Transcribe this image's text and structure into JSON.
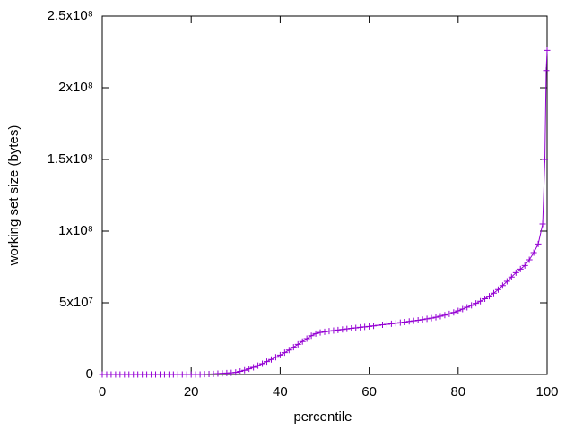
{
  "chart_data": {
    "type": "line",
    "xlabel": "percentile",
    "ylabel": "working set size (bytes)",
    "xlim": [
      0,
      100
    ],
    "ylim": [
      0,
      250000000
    ],
    "xticks": [
      0,
      20,
      40,
      60,
      80,
      100
    ],
    "yticks": [
      0,
      {
        "value": 50000000,
        "label": "5x10⁷"
      },
      {
        "value": 100000000,
        "label": "1x10⁸"
      },
      {
        "value": 150000000,
        "label": "1.5x10⁸"
      },
      {
        "value": 200000000,
        "label": "2x10⁸"
      },
      {
        "value": 250000000,
        "label": "2.5x10⁸"
      }
    ],
    "grid": false,
    "markers": true,
    "x": [
      0,
      1,
      2,
      3,
      4,
      5,
      6,
      7,
      8,
      9,
      10,
      11,
      12,
      13,
      14,
      15,
      16,
      17,
      18,
      19,
      20,
      21,
      22,
      23,
      24,
      25,
      26,
      27,
      28,
      29,
      30,
      31,
      32,
      33,
      34,
      35,
      36,
      37,
      38,
      39,
      40,
      41,
      42,
      43,
      44,
      45,
      46,
      47,
      48,
      49,
      50,
      51,
      52,
      53,
      54,
      55,
      56,
      57,
      58,
      59,
      60,
      61,
      62,
      63,
      64,
      65,
      66,
      67,
      68,
      69,
      70,
      71,
      72,
      73,
      74,
      75,
      76,
      77,
      78,
      79,
      80,
      81,
      82,
      83,
      84,
      85,
      86,
      87,
      88,
      89,
      90,
      91,
      92,
      93,
      94,
      95,
      96,
      97,
      98,
      99,
      99.5,
      99.8,
      100
    ],
    "series": [
      {
        "color": "#9400d3",
        "values": [
          0,
          0,
          0,
          0,
          0,
          0,
          0,
          0,
          0,
          0,
          0,
          0,
          0,
          0,
          0,
          0,
          0,
          0,
          0,
          0,
          0,
          0,
          0,
          200000,
          300000,
          400000,
          600000,
          800000,
          1000000,
          1200000,
          1500000,
          2200000,
          3000000,
          4000000,
          5000000,
          6200000,
          7500000,
          9000000,
          10500000,
          12000000,
          13500000,
          15200000,
          17000000,
          19000000,
          21000000,
          23000000,
          25000000,
          27000000,
          28500000,
          29300000,
          29800000,
          30200000,
          30600000,
          31000000,
          31400000,
          31800000,
          32200000,
          32500000,
          32900000,
          33200000,
          33500000,
          33900000,
          34300000,
          34700000,
          35000000,
          35400000,
          35800000,
          36200000,
          36600000,
          37000000,
          37400000,
          37800000,
          38300000,
          38800000,
          39300000,
          39900000,
          40600000,
          41400000,
          42300000,
          43300000,
          44400000,
          45600000,
          46900000,
          48200000,
          49600000,
          51100000,
          52800000,
          54600000,
          56700000,
          59200000,
          62000000,
          65000000,
          68000000,
          71000000,
          73500000,
          76000000,
          80000000,
          85000000,
          91000000,
          105000000,
          150000000,
          212000000,
          226000000
        ]
      }
    ]
  }
}
